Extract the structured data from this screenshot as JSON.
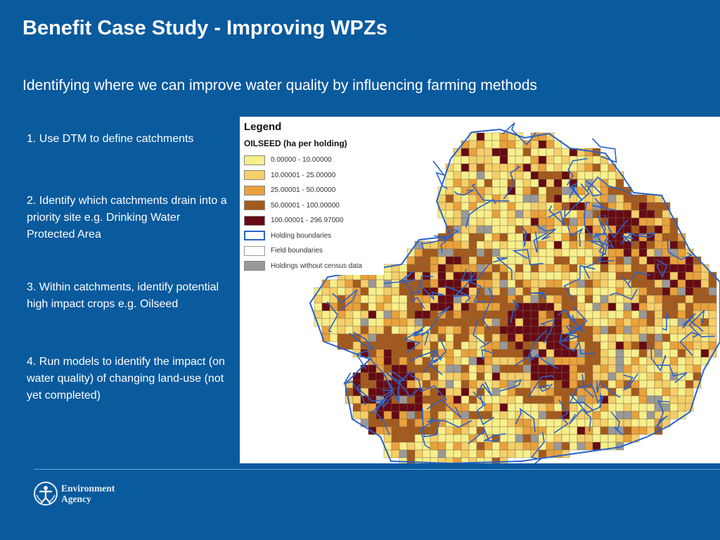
{
  "slide": {
    "title": "Benefit Case Study - Improving WPZs",
    "subtitle": "Identifying where we can improve water quality by influencing farming methods"
  },
  "steps": [
    "1. Use DTM to define catchments",
    "2. Identify which catchments drain into a priority site e.g. Drinking Water Protected Area",
    "3. Within catchments,  identify potential high impact crops e.g. Oilseed",
    "4. Run models to identify the impact (on water quality) of changing land-use (not yet completed)"
  ],
  "map": {
    "legend_title": "Legend",
    "legend_subtitle": "OILSEED (ha per holding)",
    "classes": [
      {
        "label": "0.00000 - 10.00000",
        "color": "#f7ef8c"
      },
      {
        "label": "10.00001 - 25.00000",
        "color": "#f4cf6a"
      },
      {
        "label": "25.00001 - 50.00000",
        "color": "#e9a13c"
      },
      {
        "label": "50.00001 - 100.00000",
        "color": "#a45a1e"
      },
      {
        "label": "100.00001 - 296.97000",
        "color": "#660a14"
      }
    ],
    "holding_boundaries_label": "Holding boundaries",
    "field_boundaries_label": "Field boundaries",
    "no_census_label": "Holdings without census data",
    "no_census_color": "#999999",
    "holding_boundary_color": "#2b62c9"
  },
  "footer": {
    "logo_line1": "Environment",
    "logo_line2": "Agency"
  }
}
